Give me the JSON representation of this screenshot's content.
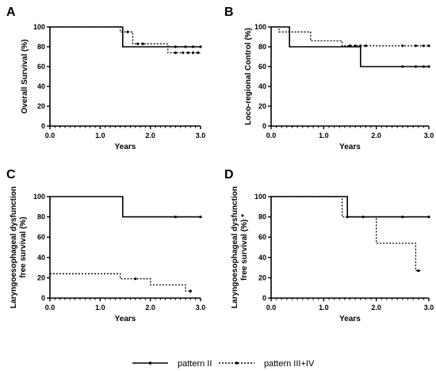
{
  "legend": {
    "solid_label": "pattern II",
    "dotted_label": "pattern III+IV"
  },
  "chart_data": [
    {
      "panel": "A",
      "type": "line",
      "step": true,
      "xlabel": "Years",
      "ylabel": [
        "Overall Survival (%)"
      ],
      "xlim": [
        0,
        3.0
      ],
      "ylim": [
        0,
        100
      ],
      "xticks": [
        "0.0",
        "1.0",
        "2.0",
        "3.0"
      ],
      "yticks": [
        "0",
        "20",
        "40",
        "60",
        "80",
        "100"
      ],
      "series": [
        {
          "name": "pattern II",
          "style": "solid",
          "points": [
            [
              0,
              100
            ],
            [
              1.45,
              100
            ],
            [
              1.45,
              80
            ],
            [
              3.0,
              80
            ]
          ],
          "censors": [
            [
              2.5,
              80
            ],
            [
              2.7,
              80
            ],
            [
              2.85,
              80
            ],
            [
              3.0,
              80
            ]
          ]
        },
        {
          "name": "pattern III+IV",
          "style": "dotted",
          "points": [
            [
              0,
              100
            ],
            [
              1.4,
              100
            ],
            [
              1.4,
              95
            ],
            [
              1.65,
              95
            ],
            [
              1.65,
              83
            ],
            [
              2.35,
              83
            ],
            [
              2.35,
              74
            ],
            [
              3.0,
              74
            ]
          ],
          "censors": [
            [
              1.55,
              95
            ],
            [
              1.75,
              83
            ],
            [
              1.85,
              83
            ],
            [
              2.5,
              74
            ],
            [
              2.65,
              74
            ],
            [
              2.75,
              74
            ],
            [
              2.85,
              74
            ],
            [
              2.95,
              74
            ]
          ]
        }
      ]
    },
    {
      "panel": "B",
      "type": "line",
      "step": true,
      "xlabel": "Years",
      "ylabel": [
        "Loco-regional Control (%)"
      ],
      "xlim": [
        0,
        3.0
      ],
      "ylim": [
        0,
        100
      ],
      "xticks": [
        "0.0",
        "1.0",
        "2.0",
        "3.0"
      ],
      "yticks": [
        "0",
        "20",
        "40",
        "60",
        "80",
        "100"
      ],
      "series": [
        {
          "name": "pattern II",
          "style": "solid",
          "points": [
            [
              0,
              100
            ],
            [
              0.35,
              100
            ],
            [
              0.35,
              80
            ],
            [
              1.7,
              80
            ],
            [
              1.7,
              60
            ],
            [
              3.0,
              60
            ]
          ],
          "censors": [
            [
              2.5,
              60
            ],
            [
              2.75,
              60
            ],
            [
              2.9,
              60
            ],
            [
              3.0,
              60
            ]
          ]
        },
        {
          "name": "pattern III+IV",
          "style": "dotted",
          "points": [
            [
              0,
              100
            ],
            [
              0.15,
              100
            ],
            [
              0.15,
              95
            ],
            [
              0.75,
              95
            ],
            [
              0.75,
              86
            ],
            [
              1.35,
              86
            ],
            [
              1.35,
              81
            ],
            [
              3.0,
              81
            ]
          ],
          "censors": [
            [
              1.5,
              81
            ],
            [
              1.6,
              81
            ],
            [
              1.7,
              81
            ],
            [
              1.8,
              81
            ],
            [
              2.5,
              81
            ],
            [
              2.75,
              81
            ],
            [
              2.9,
              81
            ],
            [
              3.0,
              81
            ]
          ]
        }
      ]
    },
    {
      "panel": "C",
      "type": "line",
      "step": true,
      "xlabel": "Years",
      "ylabel": [
        "Laryngoesophageal dysfunction",
        "free survival (%)"
      ],
      "xlim": [
        0,
        3.0
      ],
      "ylim": [
        0,
        100
      ],
      "xticks": [
        "0.0",
        "1.0",
        "2.0",
        "3.0"
      ],
      "yticks": [
        "0",
        "20",
        "40",
        "60",
        "80",
        "100"
      ],
      "series": [
        {
          "name": "pattern II",
          "style": "solid",
          "points": [
            [
              0,
              100
            ],
            [
              1.45,
              100
            ],
            [
              1.45,
              80
            ],
            [
              3.0,
              80
            ]
          ],
          "censors": [
            [
              2.5,
              80
            ],
            [
              3.0,
              80
            ]
          ]
        },
        {
          "name": "pattern III+IV",
          "style": "dotted",
          "points": [
            [
              0,
              24
            ],
            [
              1.4,
              24
            ],
            [
              1.4,
              19
            ],
            [
              2.0,
              19
            ],
            [
              2.0,
              13
            ],
            [
              2.7,
              13
            ],
            [
              2.7,
              7
            ],
            [
              2.8,
              7
            ],
            [
              2.8,
              5
            ]
          ],
          "censors": [
            [
              1.7,
              19
            ],
            [
              2.8,
              7
            ]
          ]
        }
      ]
    },
    {
      "panel": "D",
      "type": "line",
      "step": true,
      "xlabel": "Years",
      "ylabel": [
        "Laryngoesophageal dysfunction",
        "free survival (%) *"
      ],
      "xlim": [
        0,
        3.0
      ],
      "ylim": [
        0,
        100
      ],
      "xticks": [
        "0.0",
        "1.0",
        "2.0",
        "3.0"
      ],
      "yticks": [
        "0",
        "20",
        "40",
        "60",
        "80",
        "100"
      ],
      "series": [
        {
          "name": "pattern II",
          "style": "solid",
          "points": [
            [
              0,
              100
            ],
            [
              1.45,
              100
            ],
            [
              1.45,
              80
            ],
            [
              3.0,
              80
            ]
          ],
          "censors": [
            [
              1.75,
              80
            ],
            [
              2.5,
              80
            ],
            [
              3.0,
              80
            ]
          ]
        },
        {
          "name": "pattern III+IV",
          "style": "dotted",
          "points": [
            [
              0,
              100
            ],
            [
              1.35,
              100
            ],
            [
              1.35,
              80
            ],
            [
              2.0,
              80
            ],
            [
              2.0,
              54
            ],
            [
              2.75,
              54
            ],
            [
              2.75,
              27
            ],
            [
              2.85,
              27
            ]
          ],
          "censors": [
            [
              1.45,
              80
            ],
            [
              2.8,
              27
            ]
          ]
        }
      ]
    }
  ]
}
